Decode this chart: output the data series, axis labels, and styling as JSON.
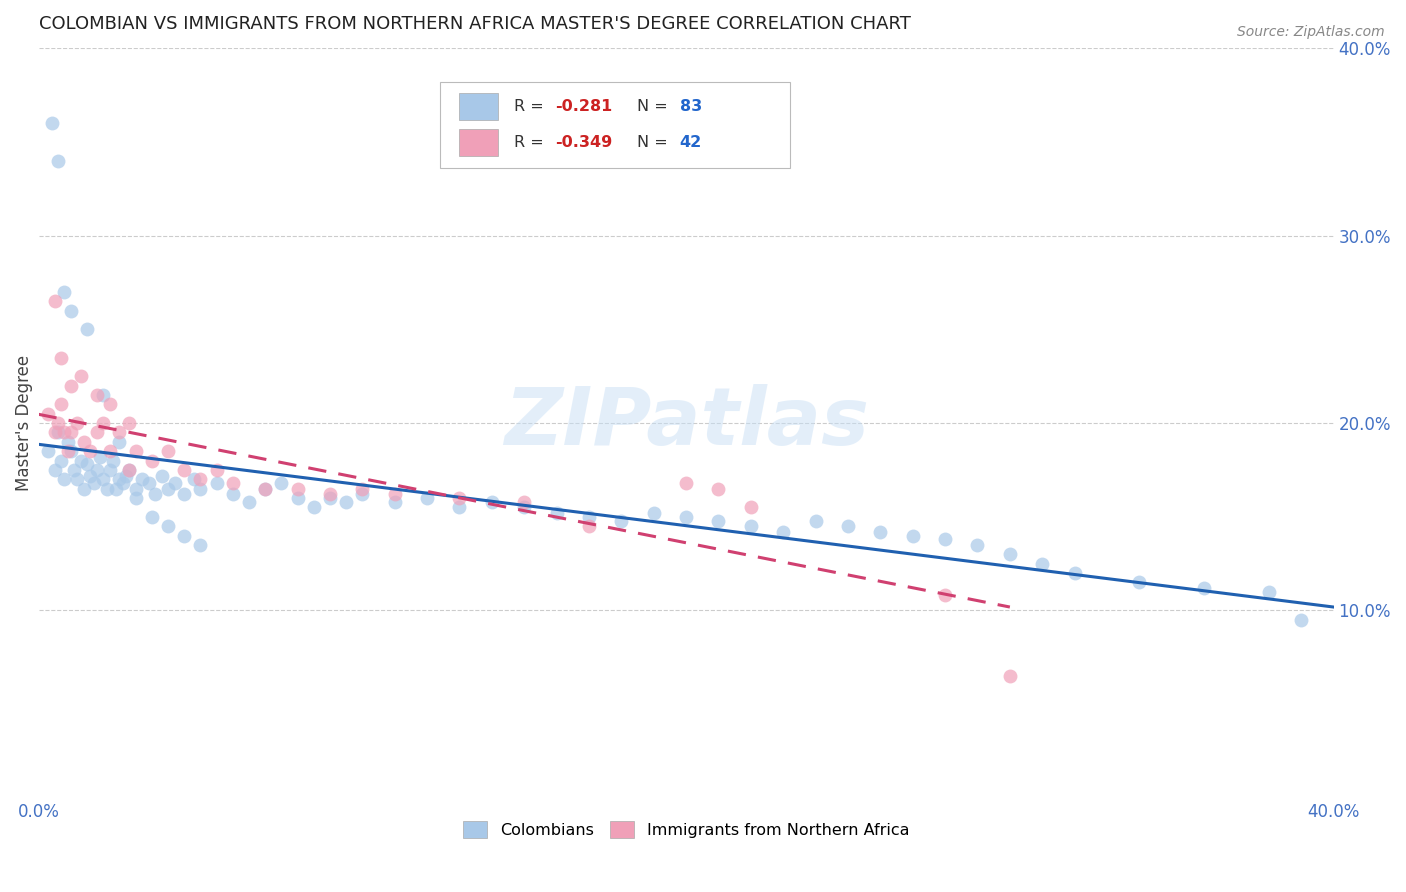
{
  "title": "COLOMBIAN VS IMMIGRANTS FROM NORTHERN AFRICA MASTER'S DEGREE CORRELATION CHART",
  "source": "Source: ZipAtlas.com",
  "ylabel": "Master's Degree",
  "watermark": "ZIPatlas",
  "legend_label1": "Colombians",
  "legend_label2": "Immigrants from Northern Africa",
  "r_colombian": -0.281,
  "n_colombian": 83,
  "r_northern_africa": -0.349,
  "n_northern_africa": 42,
  "xlim": [
    0.0,
    0.4
  ],
  "ylim": [
    0.0,
    0.4
  ],
  "xtick_labels": [
    "0.0%",
    "40.0%"
  ],
  "xtick_vals": [
    0.0,
    0.4
  ],
  "ytick_labels": [
    "10.0%",
    "20.0%",
    "30.0%",
    "40.0%"
  ],
  "ytick_vals": [
    0.1,
    0.2,
    0.3,
    0.4
  ],
  "grid_vals": [
    0.1,
    0.2,
    0.3,
    0.4
  ],
  "color_colombian": "#a8c8e8",
  "color_northern_africa": "#f0a0b8",
  "line_color_colombian": "#2060b0",
  "line_color_northern_africa": "#d04070",
  "background_color": "#ffffff",
  "scatter_alpha": 0.7,
  "scatter_size": 100,
  "colombian_x": [
    0.003,
    0.005,
    0.006,
    0.007,
    0.008,
    0.009,
    0.01,
    0.011,
    0.012,
    0.013,
    0.014,
    0.015,
    0.016,
    0.017,
    0.018,
    0.019,
    0.02,
    0.021,
    0.022,
    0.023,
    0.024,
    0.025,
    0.026,
    0.027,
    0.028,
    0.03,
    0.032,
    0.034,
    0.036,
    0.038,
    0.04,
    0.042,
    0.045,
    0.048,
    0.05,
    0.055,
    0.06,
    0.065,
    0.07,
    0.075,
    0.08,
    0.085,
    0.09,
    0.095,
    0.1,
    0.11,
    0.12,
    0.13,
    0.14,
    0.15,
    0.16,
    0.17,
    0.18,
    0.19,
    0.2,
    0.21,
    0.22,
    0.23,
    0.24,
    0.25,
    0.26,
    0.27,
    0.28,
    0.29,
    0.3,
    0.31,
    0.32,
    0.34,
    0.36,
    0.38,
    0.39,
    0.004,
    0.006,
    0.008,
    0.01,
    0.015,
    0.02,
    0.025,
    0.03,
    0.035,
    0.04,
    0.045,
    0.05
  ],
  "colombian_y": [
    0.185,
    0.175,
    0.195,
    0.18,
    0.17,
    0.19,
    0.185,
    0.175,
    0.17,
    0.18,
    0.165,
    0.178,
    0.172,
    0.168,
    0.175,
    0.182,
    0.17,
    0.165,
    0.175,
    0.18,
    0.165,
    0.17,
    0.168,
    0.172,
    0.175,
    0.165,
    0.17,
    0.168,
    0.162,
    0.172,
    0.165,
    0.168,
    0.162,
    0.17,
    0.165,
    0.168,
    0.162,
    0.158,
    0.165,
    0.168,
    0.16,
    0.155,
    0.16,
    0.158,
    0.162,
    0.158,
    0.16,
    0.155,
    0.158,
    0.155,
    0.152,
    0.15,
    0.148,
    0.152,
    0.15,
    0.148,
    0.145,
    0.142,
    0.148,
    0.145,
    0.142,
    0.14,
    0.138,
    0.135,
    0.13,
    0.125,
    0.12,
    0.115,
    0.112,
    0.11,
    0.095,
    0.36,
    0.34,
    0.27,
    0.26,
    0.25,
    0.215,
    0.19,
    0.16,
    0.15,
    0.145,
    0.14,
    0.135
  ],
  "northern_africa_x": [
    0.003,
    0.005,
    0.006,
    0.007,
    0.008,
    0.009,
    0.01,
    0.012,
    0.014,
    0.016,
    0.018,
    0.02,
    0.022,
    0.025,
    0.028,
    0.03,
    0.035,
    0.04,
    0.045,
    0.05,
    0.055,
    0.06,
    0.07,
    0.08,
    0.09,
    0.1,
    0.11,
    0.13,
    0.15,
    0.17,
    0.2,
    0.21,
    0.22,
    0.28,
    0.005,
    0.007,
    0.01,
    0.013,
    0.018,
    0.022,
    0.028,
    0.3
  ],
  "northern_africa_y": [
    0.205,
    0.195,
    0.2,
    0.21,
    0.195,
    0.185,
    0.195,
    0.2,
    0.19,
    0.185,
    0.195,
    0.2,
    0.185,
    0.195,
    0.175,
    0.185,
    0.18,
    0.185,
    0.175,
    0.17,
    0.175,
    0.168,
    0.165,
    0.165,
    0.162,
    0.165,
    0.162,
    0.16,
    0.158,
    0.145,
    0.168,
    0.165,
    0.155,
    0.108,
    0.265,
    0.235,
    0.22,
    0.225,
    0.215,
    0.21,
    0.2,
    0.065
  ]
}
